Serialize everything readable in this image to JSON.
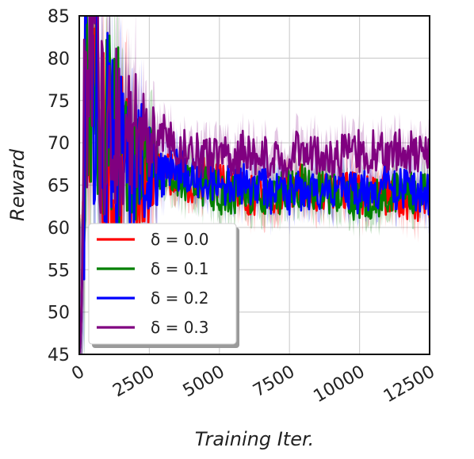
{
  "chart_data": {
    "type": "line",
    "xlabel": "Training Iter.",
    "ylabel": "Reward",
    "xlim": [
      0,
      12500
    ],
    "ylim": [
      45,
      85
    ],
    "xticks": [
      0,
      2500,
      5000,
      7500,
      10000,
      12500
    ],
    "yticks": [
      45,
      50,
      55,
      60,
      65,
      70,
      75,
      80,
      85
    ],
    "grid": true,
    "legend_position": "lower-left",
    "x": [
      0,
      250,
      500,
      750,
      1000,
      1500,
      2000,
      2500,
      3000,
      3500,
      4000,
      4500,
      5000,
      6000,
      7000,
      8000,
      9000,
      10000,
      11000,
      12000,
      12500
    ],
    "series": [
      {
        "name": "δ = 0.0",
        "color": "#ff0000",
        "values": [
          45,
          80,
          79,
          74,
          70,
          68,
          66,
          66,
          67,
          66,
          65,
          66,
          65,
          64,
          64,
          65,
          64,
          64,
          64,
          63,
          63
        ]
      },
      {
        "name": "δ = 0.1",
        "color": "#008000",
        "values": [
          45,
          79,
          80,
          76,
          73,
          70,
          68,
          67,
          67,
          66,
          65,
          65,
          64,
          64,
          64,
          65,
          64,
          63,
          64,
          64,
          64
        ]
      },
      {
        "name": "δ = 0.2",
        "color": "#0000ff",
        "values": [
          45,
          78,
          77,
          74,
          71,
          69,
          68,
          67,
          66,
          67,
          66,
          66,
          65,
          65,
          64,
          64,
          65,
          64,
          65,
          64,
          64
        ]
      },
      {
        "name": "δ = 0.3",
        "color": "#800080",
        "values": [
          45,
          77,
          78,
          75,
          72,
          71,
          70,
          70,
          71,
          69,
          69,
          68,
          68,
          69,
          68,
          69,
          68,
          69,
          69,
          69,
          69
        ]
      }
    ]
  }
}
